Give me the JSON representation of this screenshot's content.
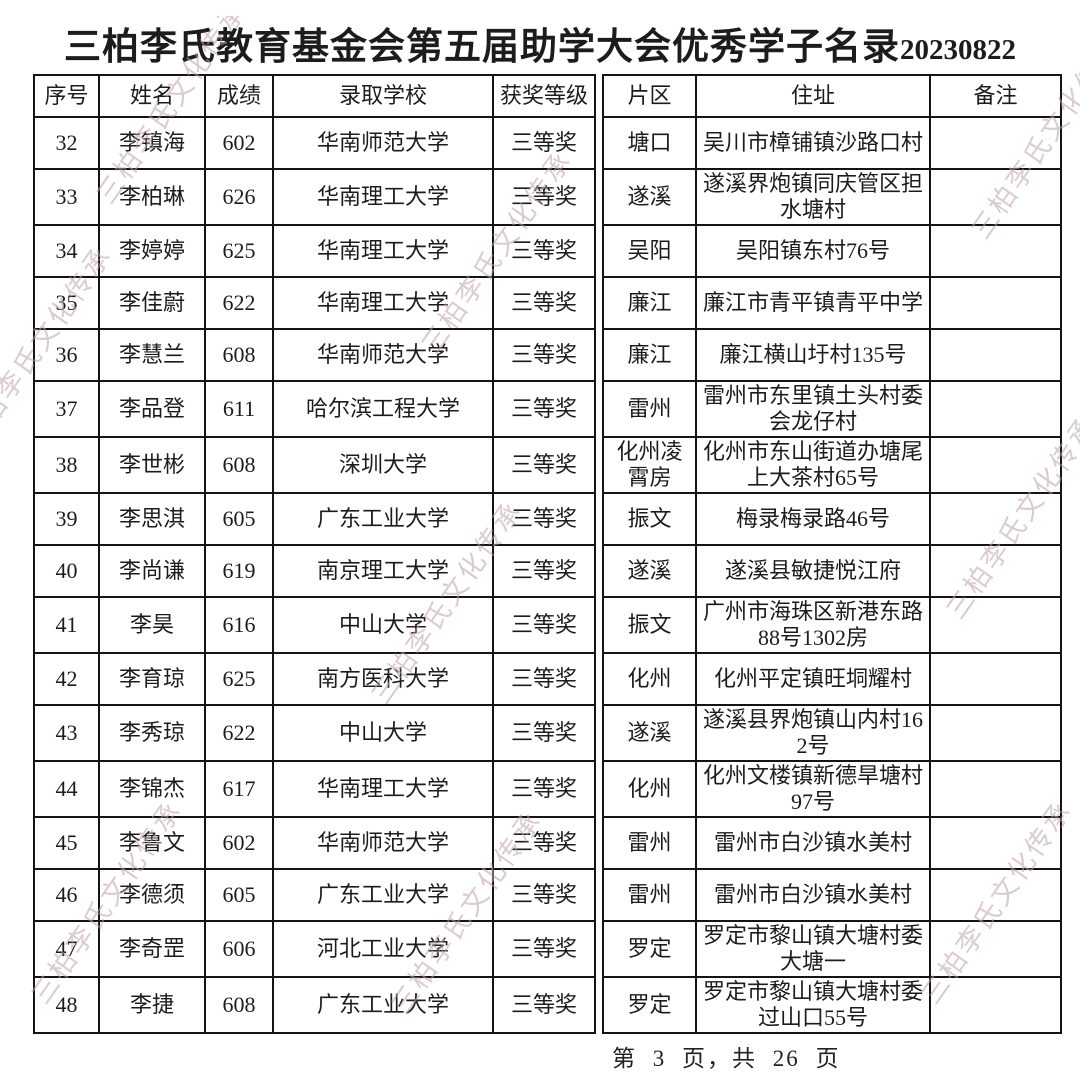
{
  "title": {
    "main": "三柏李氏教育基金会第五届助学大会优秀学子名录",
    "date": "20230822"
  },
  "watermark": {
    "text": "三柏李氏文化传承"
  },
  "table": {
    "headers": {
      "index": "序号",
      "name": "姓名",
      "score": "成绩",
      "school": "录取学校",
      "award": "获奖等级",
      "district": "片区",
      "address": "住址",
      "remark": "备注"
    },
    "rows": [
      {
        "index": "32",
        "name": "李镇海",
        "score": "602",
        "school": "华南师范大学",
        "award": "三等奖",
        "district": "塘口",
        "address": "吴川市樟铺镇沙路口村",
        "remark": ""
      },
      {
        "index": "33",
        "name": "李柏琳",
        "score": "626",
        "school": "华南理工大学",
        "award": "三等奖",
        "district": "遂溪",
        "address": "遂溪界炮镇同庆管区担水塘村",
        "remark": ""
      },
      {
        "index": "34",
        "name": "李婷婷",
        "score": "625",
        "school": "华南理工大学",
        "award": "三等奖",
        "district": "吴阳",
        "address": "吴阳镇东村76号",
        "remark": ""
      },
      {
        "index": "35",
        "name": "李佳蔚",
        "score": "622",
        "school": "华南理工大学",
        "award": "三等奖",
        "district": "廉江",
        "address": "廉江市青平镇青平中学",
        "remark": ""
      },
      {
        "index": "36",
        "name": "李慧兰",
        "score": "608",
        "school": "华南师范大学",
        "award": "三等奖",
        "district": "廉江",
        "address": "廉江横山圩村135号",
        "remark": ""
      },
      {
        "index": "37",
        "name": "李品登",
        "score": "611",
        "school": "哈尔滨工程大学",
        "award": "三等奖",
        "district": "雷州",
        "address": "雷州市东里镇土头村委会龙仔村",
        "remark": ""
      },
      {
        "index": "38",
        "name": "李世彬",
        "score": "608",
        "school": "深圳大学",
        "award": "三等奖",
        "district": "化州凌霄房",
        "address": "化州市东山街道办塘尾上大茶村65号",
        "remark": ""
      },
      {
        "index": "39",
        "name": "李思淇",
        "score": "605",
        "school": "广东工业大学",
        "award": "三等奖",
        "district": "振文",
        "address": "梅录梅录路46号",
        "remark": ""
      },
      {
        "index": "40",
        "name": "李尚谦",
        "score": "619",
        "school": "南京理工大学",
        "award": "三等奖",
        "district": "遂溪",
        "address": "遂溪县敏捷悦江府",
        "remark": ""
      },
      {
        "index": "41",
        "name": "李昊",
        "score": "616",
        "school": "中山大学",
        "award": "三等奖",
        "district": "振文",
        "address": "广州市海珠区新港东路88号1302房",
        "remark": ""
      },
      {
        "index": "42",
        "name": "李育琼",
        "score": "625",
        "school": "南方医科大学",
        "award": "三等奖",
        "district": "化州",
        "address": "化州平定镇旺垌耀村",
        "remark": ""
      },
      {
        "index": "43",
        "name": "李秀琼",
        "score": "622",
        "school": "中山大学",
        "award": "三等奖",
        "district": "遂溪",
        "address": "遂溪县界炮镇山内村162号",
        "remark": ""
      },
      {
        "index": "44",
        "name": "李锦杰",
        "score": "617",
        "school": "华南理工大学",
        "award": "三等奖",
        "district": "化州",
        "address": "化州文楼镇新德旱塘村97号",
        "remark": ""
      },
      {
        "index": "45",
        "name": "李鲁文",
        "score": "602",
        "school": "华南师范大学",
        "award": "三等奖",
        "district": "雷州",
        "address": "雷州市白沙镇水美村",
        "remark": ""
      },
      {
        "index": "46",
        "name": "李德须",
        "score": "605",
        "school": "广东工业大学",
        "award": "三等奖",
        "district": "雷州",
        "address": "雷州市白沙镇水美村",
        "remark": ""
      },
      {
        "index": "47",
        "name": "李奇罡",
        "score": "606",
        "school": "河北工业大学",
        "award": "三等奖",
        "district": "罗定",
        "address": "罗定市黎山镇大塘村委大塘一",
        "remark": ""
      },
      {
        "index": "48",
        "name": "李捷",
        "score": "608",
        "school": "广东工业大学",
        "award": "三等奖",
        "district": "罗定",
        "address": "罗定市黎山镇大塘村委过山口55号",
        "remark": ""
      }
    ]
  },
  "footer": {
    "page_text": "第 3 页，共 26 页"
  }
}
